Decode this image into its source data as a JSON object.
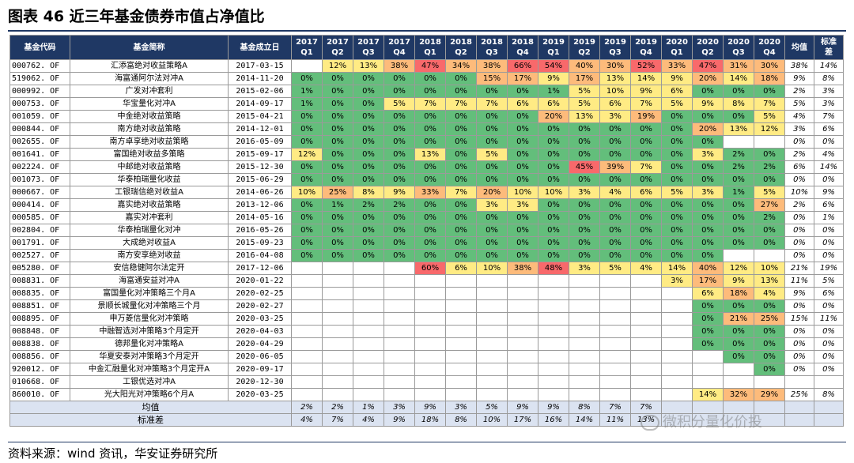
{
  "title": "图表 46  近三年基金债券市值占净值比",
  "source": "资料来源：wind 资讯，华安证券研究所",
  "watermark": "微积分量化价投",
  "colors": {
    "header_bg": "#1f3864",
    "footer_bg": "#dbe3f1",
    "green": "#63be7b",
    "yellow": "#ffeb84",
    "orange": "#fdbb7b",
    "red": "#f8696b"
  },
  "table": {
    "headers": [
      "基金代码",
      "基金简称",
      "基金成立日",
      "2017 Q1",
      "2017 Q2",
      "2017 Q3",
      "2017 Q4",
      "2018 Q1",
      "2018 Q2",
      "2018 Q3",
      "2018 Q4",
      "2019 Q1",
      "2019 Q2",
      "2019 Q3",
      "2019 Q4",
      "2020 Q1",
      "2020 Q2",
      "2020 Q3",
      "2020 Q4",
      "均值",
      "标准差"
    ],
    "rows": [
      {
        "code": "000762. OF",
        "name": "汇添富绝对收益策略A",
        "date": "2017-03-15",
        "q": [
          "",
          "12%",
          "13%",
          "38%",
          "47%",
          "34%",
          "38%",
          "66%",
          "54%",
          "40%",
          "30%",
          "52%",
          "33%",
          "47%",
          "31%",
          "30%"
        ],
        "mean": "38%",
        "std": "14%"
      },
      {
        "code": "519062. OF",
        "name": "海富通阿尔法对冲A",
        "date": "2014-11-20",
        "q": [
          "0%",
          "0%",
          "0%",
          "0%",
          "0%",
          "0%",
          "15%",
          "17%",
          "9%",
          "17%",
          "13%",
          "14%",
          "9%",
          "20%",
          "14%",
          "18%"
        ],
        "mean": "9%",
        "std": "8%"
      },
      {
        "code": "000992. OF",
        "name": "广发对冲套利",
        "date": "2015-02-06",
        "q": [
          "1%",
          "0%",
          "0%",
          "0%",
          "0%",
          "0%",
          "0%",
          "0%",
          "1%",
          "5%",
          "10%",
          "9%",
          "6%",
          "0%",
          "0%",
          "0%"
        ],
        "mean": "2%",
        "std": "3%"
      },
      {
        "code": "000753. OF",
        "name": "华宝量化对冲A",
        "date": "2014-09-17",
        "q": [
          "1%",
          "0%",
          "0%",
          "5%",
          "7%",
          "7%",
          "7%",
          "6%",
          "6%",
          "5%",
          "6%",
          "7%",
          "5%",
          "9%",
          "8%",
          "7%"
        ],
        "mean": "5%",
        "std": "3%"
      },
      {
        "code": "001059. OF",
        "name": "中金绝对收益策略",
        "date": "2015-04-21",
        "q": [
          "0%",
          "0%",
          "0%",
          "0%",
          "0%",
          "0%",
          "0%",
          "0%",
          "20%",
          "13%",
          "3%",
          "19%",
          "0%",
          "0%",
          "0%",
          "5%"
        ],
        "mean": "4%",
        "std": "7%"
      },
      {
        "code": "000844. OF",
        "name": "南方绝对收益策略",
        "date": "2014-12-01",
        "q": [
          "0%",
          "0%",
          "0%",
          "0%",
          "0%",
          "0%",
          "0%",
          "0%",
          "0%",
          "0%",
          "0%",
          "0%",
          "0%",
          "20%",
          "13%",
          "12%"
        ],
        "mean": "3%",
        "std": "6%"
      },
      {
        "code": "002655. OF",
        "name": "南方卓享绝对收益策略",
        "date": "2016-05-09",
        "q": [
          "0%",
          "0%",
          "0%",
          "0%",
          "0%",
          "0%",
          "0%",
          "0%",
          "0%",
          "0%",
          "0%",
          "0%",
          "0%",
          "0%",
          "",
          ""
        ],
        "mean": "0%",
        "std": "0%"
      },
      {
        "code": "001641. OF",
        "name": "富国绝对收益多策略",
        "date": "2015-09-17",
        "q": [
          "12%",
          "0%",
          "0%",
          "0%",
          "13%",
          "0%",
          "5%",
          "0%",
          "0%",
          "0%",
          "0%",
          "0%",
          "0%",
          "3%",
          "2%",
          "0%"
        ],
        "mean": "2%",
        "std": "4%"
      },
      {
        "code": "002224. OF",
        "name": "中邮绝对收益策略",
        "date": "2015-12-30",
        "q": [
          "0%",
          "0%",
          "0%",
          "0%",
          "0%",
          "0%",
          "0%",
          "0%",
          "0%",
          "45%",
          "39%",
          "7%",
          "0%",
          "0%",
          "2%",
          "2%"
        ],
        "mean": "6%",
        "std": "14%"
      },
      {
        "code": "001073. OF",
        "name": "华泰柏瑞量化收益",
        "date": "2015-06-29",
        "q": [
          "0%",
          "0%",
          "0%",
          "0%",
          "0%",
          "0%",
          "0%",
          "0%",
          "0%",
          "0%",
          "0%",
          "0%",
          "0%",
          "0%",
          "0%",
          "0%"
        ],
        "mean": "0%",
        "std": "0%"
      },
      {
        "code": "000667. OF",
        "name": "工银瑞信绝对收益A",
        "date": "2014-06-26",
        "q": [
          "10%",
          "25%",
          "8%",
          "9%",
          "33%",
          "7%",
          "20%",
          "10%",
          "10%",
          "3%",
          "4%",
          "6%",
          "5%",
          "3%",
          "1%",
          "5%"
        ],
        "mean": "10%",
        "std": "9%"
      },
      {
        "code": "000414. OF",
        "name": "嘉实绝对收益策略",
        "date": "2013-12-06",
        "q": [
          "0%",
          "1%",
          "2%",
          "2%",
          "0%",
          "0%",
          "3%",
          "3%",
          "0%",
          "0%",
          "0%",
          "0%",
          "0%",
          "0%",
          "0%",
          "27%"
        ],
        "mean": "2%",
        "std": "6%"
      },
      {
        "code": "000585. OF",
        "name": "嘉实对冲套利",
        "date": "2014-05-16",
        "q": [
          "0%",
          "0%",
          "0%",
          "0%",
          "0%",
          "0%",
          "0%",
          "0%",
          "0%",
          "0%",
          "0%",
          "0%",
          "0%",
          "0%",
          "0%",
          "2%"
        ],
        "mean": "0%",
        "std": "1%"
      },
      {
        "code": "002804. OF",
        "name": "华泰柏瑞量化对冲",
        "date": "2016-05-26",
        "q": [
          "0%",
          "0%",
          "0%",
          "0%",
          "0%",
          "0%",
          "0%",
          "0%",
          "0%",
          "0%",
          "0%",
          "0%",
          "0%",
          "0%",
          "0%",
          "0%"
        ],
        "mean": "0%",
        "std": "0%"
      },
      {
        "code": "001791. OF",
        "name": "大成绝对收益A",
        "date": "2015-09-23",
        "q": [
          "0%",
          "0%",
          "0%",
          "0%",
          "0%",
          "0%",
          "0%",
          "0%",
          "0%",
          "0%",
          "0%",
          "0%",
          "0%",
          "0%",
          "0%",
          "0%"
        ],
        "mean": "0%",
        "std": "0%"
      },
      {
        "code": "002527. OF",
        "name": "南方安享绝对收益",
        "date": "2016-04-08",
        "q": [
          "0%",
          "0%",
          "0%",
          "0%",
          "0%",
          "0%",
          "0%",
          "0%",
          "0%",
          "0%",
          "0%",
          "0%",
          "0%",
          "0%",
          "",
          ""
        ],
        "mean": "0%",
        "std": "0%"
      },
      {
        "code": "005280. OF",
        "name": "安信稳健阿尔法定开",
        "date": "2017-12-06",
        "q": [
          "",
          "",
          "",
          "",
          "60%",
          "6%",
          "10%",
          "38%",
          "48%",
          "3%",
          "5%",
          "4%",
          "14%",
          "40%",
          "12%",
          "10%"
        ],
        "mean": "21%",
        "std": "19%"
      },
      {
        "code": "008831. OF",
        "name": "海富通安益对冲A",
        "date": "2020-01-22",
        "q": [
          "",
          "",
          "",
          "",
          "",
          "",
          "",
          "",
          "",
          "",
          "",
          "",
          "3%",
          "17%",
          "9%",
          "13%"
        ],
        "mean": "11%",
        "std": "5%"
      },
      {
        "code": "008835. OF",
        "name": "富国量化对冲策略三个月A",
        "date": "2020-02-25",
        "q": [
          "",
          "",
          "",
          "",
          "",
          "",
          "",
          "",
          "",
          "",
          "",
          "",
          "",
          "6%",
          "18%",
          "4%"
        ],
        "mean": "9%",
        "std": "6%"
      },
      {
        "code": "008851. OF",
        "name": "景顺长城量化对冲策略三个月",
        "date": "2020-02-27",
        "q": [
          "",
          "",
          "",
          "",
          "",
          "",
          "",
          "",
          "",
          "",
          "",
          "",
          "",
          "0%",
          "0%",
          "0%"
        ],
        "mean": "0%",
        "std": "0%"
      },
      {
        "code": "008895. OF",
        "name": "申万菱信量化对冲策略",
        "date": "2020-03-25",
        "q": [
          "",
          "",
          "",
          "",
          "",
          "",
          "",
          "",
          "",
          "",
          "",
          "",
          "",
          "0%",
          "21%",
          "25%"
        ],
        "mean": "15%",
        "std": "11%"
      },
      {
        "code": "008848. OF",
        "name": "中融智选对冲策略3个月定开",
        "date": "2020-04-03",
        "q": [
          "",
          "",
          "",
          "",
          "",
          "",
          "",
          "",
          "",
          "",
          "",
          "",
          "",
          "0%",
          "0%",
          "0%"
        ],
        "mean": "0%",
        "std": "0%"
      },
      {
        "code": "008838. OF",
        "name": "德邦量化对冲策略A",
        "date": "2020-04-29",
        "q": [
          "",
          "",
          "",
          "",
          "",
          "",
          "",
          "",
          "",
          "",
          "",
          "",
          "",
          "0%",
          "0%",
          "0%"
        ],
        "mean": "0%",
        "std": "0%"
      },
      {
        "code": "008856. OF",
        "name": "华夏安泰对冲策略3个月定开",
        "date": "2020-06-05",
        "q": [
          "",
          "",
          "",
          "",
          "",
          "",
          "",
          "",
          "",
          "",
          "",
          "",
          "",
          "",
          "0%",
          "0%"
        ],
        "mean": "0%",
        "std": "0%"
      },
      {
        "code": "920012. OF",
        "name": "中金汇融量化对冲策略3个月定开A",
        "date": "2020-09-17",
        "q": [
          "",
          "",
          "",
          "",
          "",
          "",
          "",
          "",
          "",
          "",
          "",
          "",
          "",
          "",
          "",
          "0%"
        ],
        "mean": "0%",
        "std": "0%"
      },
      {
        "code": "010668. OF",
        "name": "工银优选对冲A",
        "date": "2020-12-30",
        "q": [
          "",
          "",
          "",
          "",
          "",
          "",
          "",
          "",
          "",
          "",
          "",
          "",
          "",
          "",
          "",
          ""
        ],
        "mean": "",
        "std": ""
      },
      {
        "code": "860010. OF",
        "name": "光大阳光对冲策略6个月A",
        "date": "2020-03-25",
        "q": [
          "",
          "",
          "",
          "",
          "",
          "",
          "",
          "",
          "",
          "",
          "",
          "",
          "",
          "14%",
          "32%",
          "29%"
        ],
        "mean": "25%",
        "std": "8%"
      }
    ],
    "footer": [
      {
        "label": "均值",
        "q": [
          "2%",
          "2%",
          "1%",
          "3%",
          "9%",
          "3%",
          "5%",
          "9%",
          "9%",
          "8%",
          "7%",
          "7%",
          "",
          "",
          "",
          ""
        ],
        "mean": "",
        "std": ""
      },
      {
        "label": "标准差",
        "q": [
          "4%",
          "7%",
          "4%",
          "9%",
          "18%",
          "8%",
          "10%",
          "17%",
          "16%",
          "14%",
          "11%",
          "13%",
          "",
          "",
          "",
          ""
        ],
        "mean": "",
        "std": ""
      }
    ]
  }
}
